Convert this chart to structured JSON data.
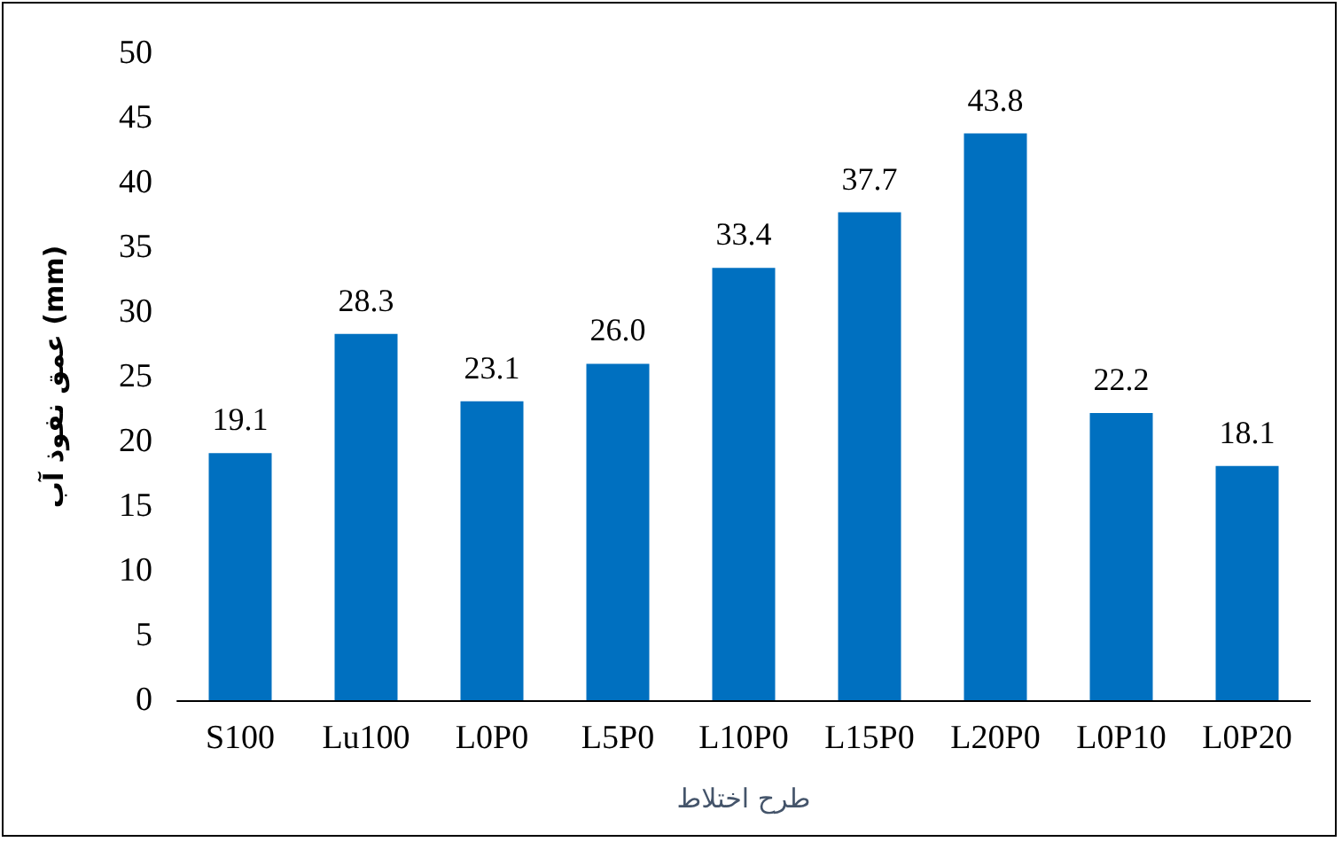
{
  "chart_data": {
    "type": "bar",
    "xlabel": "طرح اختلاط",
    "ylabel": "عمق نفوذ آب (mm)",
    "categories": [
      "S100",
      "Lu100",
      "L0P0",
      "L5P0",
      "L10P0",
      "L15P0",
      "L20P0",
      "L0P10",
      "L0P20"
    ],
    "values": [
      19.1,
      28.3,
      23.1,
      26.0,
      33.4,
      37.7,
      43.8,
      22.2,
      18.1
    ],
    "value_labels": [
      "19.1",
      "28.3",
      "23.1",
      "26.0",
      "33.4",
      "37.7",
      "43.8",
      "22.2",
      "18.1"
    ],
    "color": "#0070c0",
    "ylim": [
      0,
      50
    ],
    "yticks": [
      0,
      5,
      10,
      15,
      20,
      25,
      30,
      35,
      40,
      45,
      50
    ],
    "grid": false
  }
}
